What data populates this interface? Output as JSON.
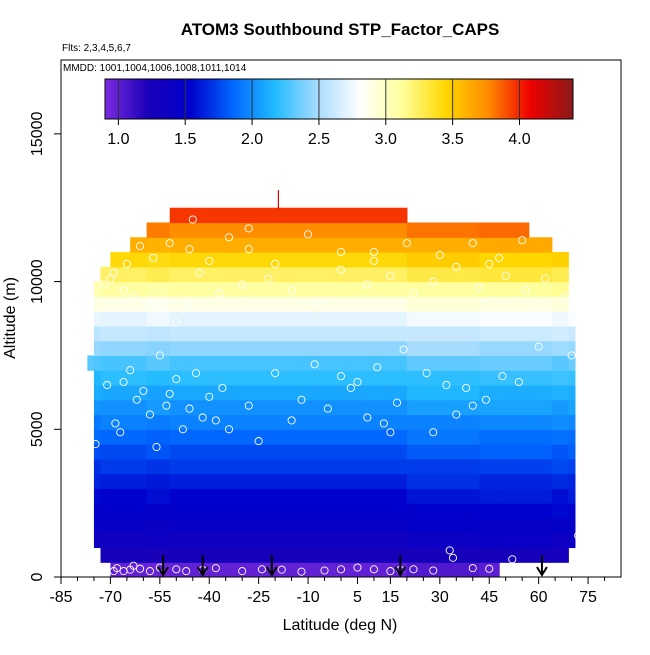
{
  "chart_data": {
    "type": "heatmap",
    "title": "ATOM3 Southbound STP_Factor_CAPS",
    "subtitle_flights": "Flts: 2,3,4,5,6,7",
    "subtitle_dates": "MMDD: 1001,1004,1006,1008,1011,1014",
    "xlabel": "Latitude (deg N)",
    "ylabel": "Altitude (m)",
    "xlim": [
      -85,
      85
    ],
    "ylim": [
      0,
      17500
    ],
    "x_ticks": [
      -85,
      -70,
      -55,
      -40,
      -25,
      -10,
      5,
      15,
      30,
      45,
      60,
      75
    ],
    "x_tick_labels": [
      "-85",
      "-70",
      "-55",
      "-40",
      "-25",
      "-10",
      "5",
      "15",
      "30",
      "45",
      "60",
      "75"
    ],
    "y_ticks": [
      0,
      5000,
      10000,
      15000
    ],
    "y_tick_labels": [
      "0",
      "5000",
      "10000",
      "15000"
    ],
    "colorbar": {
      "min": 0.9,
      "max": 4.4,
      "ticks": [
        1.0,
        1.5,
        2.0,
        2.5,
        3.0,
        3.5,
        4.0
      ],
      "tick_labels": [
        "1.0",
        "1.5",
        "2.0",
        "2.5",
        "3.0",
        "3.5",
        "4.0"
      ],
      "colors": [
        "#7c2ce0",
        "#1a00b8",
        "#0000cc",
        "#0066ff",
        "#22bbff",
        "#a8dcff",
        "#ffffff",
        "#ffff99",
        "#ffd700",
        "#ff8c00",
        "#ee0000",
        "#8a1a1a"
      ]
    },
    "field_rows": [
      {
        "alt0": 0,
        "alt1": 500,
        "value": 1.0
      },
      {
        "alt0": 500,
        "alt1": 1000,
        "value": 1.25
      },
      {
        "alt0": 1000,
        "alt1": 1500,
        "value": 1.38
      },
      {
        "alt0": 1500,
        "alt1": 2000,
        "value": 1.45
      },
      {
        "alt0": 2000,
        "alt1": 2500,
        "value": 1.52
      },
      {
        "alt0": 2500,
        "alt1": 3000,
        "value": 1.58
      },
      {
        "alt0": 3000,
        "alt1": 3500,
        "value": 1.65
      },
      {
        "alt0": 3500,
        "alt1": 4000,
        "value": 1.72
      },
      {
        "alt0": 4000,
        "alt1": 4500,
        "value": 1.8
      },
      {
        "alt0": 4500,
        "alt1": 5000,
        "value": 1.88
      },
      {
        "alt0": 5000,
        "alt1": 5500,
        "value": 1.96
      },
      {
        "alt0": 5500,
        "alt1": 6000,
        "value": 2.05
      },
      {
        "alt0": 6000,
        "alt1": 6500,
        "value": 2.12
      },
      {
        "alt0": 6500,
        "alt1": 7000,
        "value": 2.2
      },
      {
        "alt0": 7000,
        "alt1": 7500,
        "value": 2.3
      },
      {
        "alt0": 7500,
        "alt1": 8000,
        "value": 2.45
      },
      {
        "alt0": 8000,
        "alt1": 8500,
        "value": 2.6
      },
      {
        "alt0": 8500,
        "alt1": 9000,
        "value": 2.75
      },
      {
        "alt0": 9000,
        "alt1": 9500,
        "value": 2.9
      },
      {
        "alt0": 9500,
        "alt1": 10000,
        "value": 3.1
      },
      {
        "alt0": 10000,
        "alt1": 10500,
        "value": 3.28
      },
      {
        "alt0": 10500,
        "alt1": 11000,
        "value": 3.45
      },
      {
        "alt0": 11000,
        "alt1": 11500,
        "value": 3.62
      },
      {
        "alt0": 11500,
        "alt1": 12000,
        "value": 3.8
      },
      {
        "alt0": 12000,
        "alt1": 12500,
        "value": 3.98
      }
    ],
    "field_columns": [
      {
        "lat0": -77,
        "lat1": -75,
        "alt_min": 7000,
        "alt_max": 7500
      },
      {
        "lat0": -75,
        "lat1": -73,
        "alt_min": 1000,
        "alt_max": 10000
      },
      {
        "lat0": -73,
        "lat1": -70,
        "alt_min": 500,
        "alt_max": 10500
      },
      {
        "lat0": -70,
        "lat1": -64,
        "alt_min": 0,
        "alt_max": 11000
      },
      {
        "lat0": -64,
        "lat1": -59,
        "alt_min": 0,
        "alt_max": 11500
      },
      {
        "lat0": -59,
        "lat1": -52,
        "alt_min": 0,
        "alt_max": 12000
      },
      {
        "lat0": -52,
        "lat1": -25,
        "alt_min": 0,
        "alt_max": 12500
      },
      {
        "lat0": -25,
        "lat1": 20,
        "alt_min": 0,
        "alt_max": 12500
      },
      {
        "lat0": 20,
        "lat1": 42,
        "alt_min": 0,
        "alt_max": 12000
      },
      {
        "lat0": 42,
        "lat1": 48,
        "alt_min": 0,
        "alt_max": 12000
      },
      {
        "lat0": 48,
        "lat1": 57,
        "alt_min": 500,
        "alt_max": 12000
      },
      {
        "lat0": 57,
        "lat1": 64,
        "alt_min": 500,
        "alt_max": 11500
      },
      {
        "lat0": 64,
        "lat1": 69,
        "alt_min": 500,
        "alt_max": 11000
      },
      {
        "lat0": 69,
        "lat1": 71,
        "alt_min": 1000,
        "alt_max": 9000
      }
    ],
    "sample_points": [
      [
        -76.5,
        6800
      ],
      [
        -74.5,
        4500
      ],
      [
        -71,
        6500
      ],
      [
        -68.5,
        5200
      ],
      [
        -67,
        4900
      ],
      [
        -66,
        6600
      ],
      [
        -64,
        7000
      ],
      [
        -62,
        6000
      ],
      [
        -60,
        6300
      ],
      [
        -58,
        5500
      ],
      [
        -56,
        4400
      ],
      [
        -55,
        7500
      ],
      [
        -53,
        5800
      ],
      [
        -52,
        6200
      ],
      [
        -50,
        6700
      ],
      [
        -48,
        5000
      ],
      [
        -46,
        5700
      ],
      [
        -44,
        6900
      ],
      [
        -42,
        5400
      ],
      [
        -40,
        6100
      ],
      [
        -38,
        5300
      ],
      [
        -36,
        6400
      ],
      [
        -34,
        5000
      ],
      [
        -28,
        5800
      ],
      [
        -25,
        4600
      ],
      [
        -20,
        6900
      ],
      [
        -15,
        5300
      ],
      [
        -12,
        6000
      ],
      [
        -8,
        7200
      ],
      [
        -4,
        5700
      ],
      [
        0,
        6800
      ],
      [
        3,
        6400
      ],
      [
        5,
        6600
      ],
      [
        8,
        5400
      ],
      [
        11,
        7100
      ],
      [
        13,
        5200
      ],
      [
        15,
        4900
      ],
      [
        17,
        5900
      ],
      [
        19,
        7700
      ],
      [
        26,
        6900
      ],
      [
        28,
        4900
      ],
      [
        32,
        6500
      ],
      [
        35,
        5500
      ],
      [
        38,
        6400
      ],
      [
        40,
        5800
      ],
      [
        44,
        6000
      ],
      [
        49,
        6800
      ],
      [
        54,
        6600
      ],
      [
        60,
        7800
      ],
      [
        70,
        7500
      ],
      [
        -72,
        9900
      ],
      [
        -70,
        10100
      ],
      [
        -66,
        9700
      ],
      [
        -63,
        9500
      ],
      [
        -58,
        9300
      ],
      [
        -55,
        9000
      ],
      [
        -50,
        8600
      ],
      [
        -47,
        9200
      ],
      [
        -43,
        10300
      ],
      [
        -37,
        9600
      ],
      [
        -30,
        9900
      ],
      [
        -22,
        10100
      ],
      [
        -15,
        9700
      ],
      [
        -7,
        9300
      ],
      [
        0,
        10400
      ],
      [
        8,
        9900
      ],
      [
        15,
        10200
      ],
      [
        22,
        9600
      ],
      [
        28,
        10000
      ],
      [
        35,
        10500
      ],
      [
        42,
        9800
      ],
      [
        50,
        10200
      ],
      [
        56,
        9700
      ],
      [
        62,
        10100
      ],
      [
        68,
        9500
      ],
      [
        -69,
        10300
      ],
      [
        -65,
        10600
      ],
      [
        -61,
        11200
      ],
      [
        -57,
        10800
      ],
      [
        -52,
        11300
      ],
      [
        -46,
        11100
      ],
      [
        -40,
        10700
      ],
      [
        -34,
        11500
      ],
      [
        -28,
        11100
      ],
      [
        -20,
        10600
      ],
      [
        -10,
        11600
      ],
      [
        0,
        11000
      ],
      [
        10,
        10700
      ],
      [
        20,
        11300
      ],
      [
        30,
        10900
      ],
      [
        40,
        11300
      ],
      [
        48,
        10800
      ],
      [
        55,
        11400
      ],
      [
        62,
        11900
      ],
      [
        66,
        11800
      ],
      [
        -45,
        12100
      ],
      [
        -28,
        11800
      ],
      [
        26,
        12400
      ],
      [
        10,
        11000
      ],
      [
        45,
        10600
      ],
      [
        -68,
        300
      ],
      [
        -66,
        200
      ],
      [
        -64,
        250
      ],
      [
        -61,
        280
      ],
      [
        -58,
        200
      ],
      [
        -55,
        320
      ],
      [
        -50,
        260
      ],
      [
        -47,
        200
      ],
      [
        -42,
        240
      ],
      [
        -38,
        300
      ],
      [
        -30,
        200
      ],
      [
        -24,
        260
      ],
      [
        -18,
        250
      ],
      [
        -12,
        180
      ],
      [
        -5,
        220
      ],
      [
        0,
        260
      ],
      [
        5,
        320
      ],
      [
        10,
        260
      ],
      [
        15,
        200
      ],
      [
        18,
        240
      ],
      [
        22,
        260
      ],
      [
        28,
        220
      ],
      [
        33,
        900
      ],
      [
        34,
        650
      ],
      [
        40,
        300
      ],
      [
        45,
        280
      ],
      [
        52,
        600
      ],
      [
        72,
        1400
      ],
      [
        -69,
        200
      ],
      [
        -63,
        380
      ]
    ],
    "flight_markers": [
      -54,
      -42,
      -21,
      18,
      61
    ],
    "ceiling_mark": -19
  }
}
